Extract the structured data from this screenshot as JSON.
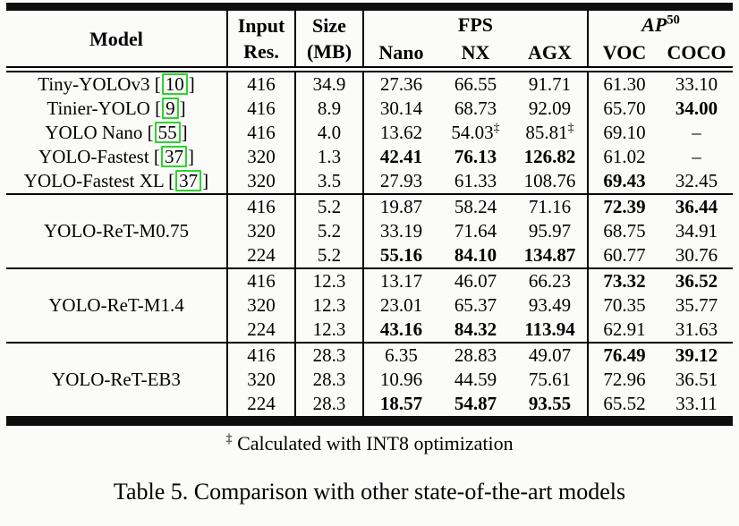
{
  "colors": {
    "cite_box_green": "#2bd52b",
    "rule_black": "#0d0d0d",
    "background": "#fbfbfa"
  },
  "header": {
    "model": "Model",
    "input_res_line1": "Input",
    "input_res_line2": "Res.",
    "size_line1": "Size",
    "size_line2": "(MB)",
    "fps_group": "FPS",
    "fps_cols": [
      "Nano",
      "NX",
      "AGX"
    ],
    "ap_base": "AP",
    "ap_sup": "50",
    "ap_cols": [
      "VOC",
      "COCO"
    ]
  },
  "table": {
    "groups": [
      {
        "rows": [
          {
            "model": "Tiny-YOLOv3",
            "cite": "10",
            "res": "416",
            "size": "34.9",
            "fps": [
              {
                "t": "27.36"
              },
              {
                "t": "66.55"
              },
              {
                "t": "91.71"
              }
            ],
            "ap": [
              {
                "t": "61.30"
              },
              {
                "t": "33.10"
              }
            ]
          },
          {
            "model": "Tinier-YOLO",
            "cite": "9",
            "res": "416",
            "size": "8.9",
            "fps": [
              {
                "t": "30.14"
              },
              {
                "t": "68.73"
              },
              {
                "t": "92.09"
              }
            ],
            "ap": [
              {
                "t": "65.70"
              },
              {
                "t": "34.00",
                "b": true
              }
            ]
          },
          {
            "model": "YOLO Nano",
            "cite": "55",
            "res": "416",
            "size": "4.0",
            "fps": [
              {
                "t": "13.62"
              },
              {
                "t": "54.03",
                "sup": "‡"
              },
              {
                "t": "85.81",
                "sup": "‡"
              }
            ],
            "ap": [
              {
                "t": "69.10"
              },
              {
                "t": "–"
              }
            ]
          },
          {
            "model": "YOLO-Fastest",
            "cite": "37",
            "res": "320",
            "size": "1.3",
            "fps": [
              {
                "t": "42.41",
                "b": true
              },
              {
                "t": "76.13",
                "b": true
              },
              {
                "t": "126.82",
                "b": true
              }
            ],
            "ap": [
              {
                "t": "61.02"
              },
              {
                "t": "–"
              }
            ]
          },
          {
            "model": "YOLO-Fastest XL",
            "cite": "37",
            "res": "320",
            "size": "3.5",
            "fps": [
              {
                "t": "27.93"
              },
              {
                "t": "61.33"
              },
              {
                "t": "108.76"
              }
            ],
            "ap": [
              {
                "t": "69.43",
                "b": true
              },
              {
                "t": "32.45"
              }
            ]
          }
        ]
      },
      {
        "model": "YOLO-ReT-M0.75",
        "rows": [
          {
            "res": "416",
            "size": "5.2",
            "fps": [
              {
                "t": "19.87"
              },
              {
                "t": "58.24"
              },
              {
                "t": "71.16"
              }
            ],
            "ap": [
              {
                "t": "72.39",
                "b": true
              },
              {
                "t": "36.44",
                "b": true
              }
            ]
          },
          {
            "res": "320",
            "size": "5.2",
            "fps": [
              {
                "t": "33.19"
              },
              {
                "t": "71.64"
              },
              {
                "t": "95.97"
              }
            ],
            "ap": [
              {
                "t": "68.75"
              },
              {
                "t": "34.91"
              }
            ]
          },
          {
            "res": "224",
            "size": "5.2",
            "fps": [
              {
                "t": "55.16",
                "b": true
              },
              {
                "t": "84.10",
                "b": true
              },
              {
                "t": "134.87",
                "b": true
              }
            ],
            "ap": [
              {
                "t": "60.77"
              },
              {
                "t": "30.76"
              }
            ]
          }
        ]
      },
      {
        "model": "YOLO-ReT-M1.4",
        "rows": [
          {
            "res": "416",
            "size": "12.3",
            "fps": [
              {
                "t": "13.17"
              },
              {
                "t": "46.07"
              },
              {
                "t": "66.23"
              }
            ],
            "ap": [
              {
                "t": "73.32",
                "b": true
              },
              {
                "t": "36.52",
                "b": true
              }
            ]
          },
          {
            "res": "320",
            "size": "12.3",
            "fps": [
              {
                "t": "23.01"
              },
              {
                "t": "65.37"
              },
              {
                "t": "93.49"
              }
            ],
            "ap": [
              {
                "t": "70.35"
              },
              {
                "t": "35.77"
              }
            ]
          },
          {
            "res": "224",
            "size": "12.3",
            "fps": [
              {
                "t": "43.16",
                "b": true
              },
              {
                "t": "84.32",
                "b": true
              },
              {
                "t": "113.94",
                "b": true
              }
            ],
            "ap": [
              {
                "t": "62.91"
              },
              {
                "t": "31.63"
              }
            ]
          }
        ]
      },
      {
        "model": "YOLO-ReT-EB3",
        "rows": [
          {
            "res": "416",
            "size": "28.3",
            "fps": [
              {
                "t": "6.35"
              },
              {
                "t": "28.83"
              },
              {
                "t": "49.07"
              }
            ],
            "ap": [
              {
                "t": "76.49",
                "b": true
              },
              {
                "t": "39.12",
                "b": true
              }
            ]
          },
          {
            "res": "320",
            "size": "28.3",
            "fps": [
              {
                "t": "10.96"
              },
              {
                "t": "44.59"
              },
              {
                "t": "75.61"
              }
            ],
            "ap": [
              {
                "t": "72.96"
              },
              {
                "t": "36.51"
              }
            ]
          },
          {
            "res": "224",
            "size": "28.3",
            "fps": [
              {
                "t": "18.57",
                "b": true
              },
              {
                "t": "54.87",
                "b": true
              },
              {
                "t": "93.55",
                "b": true
              }
            ],
            "ap": [
              {
                "t": "65.52"
              },
              {
                "t": "33.11"
              }
            ]
          }
        ]
      }
    ]
  },
  "footnote": {
    "symbol": "‡",
    "text": "Calculated with INT8 optimization"
  },
  "caption": "Table 5. Comparison with other state-of-the-art models"
}
